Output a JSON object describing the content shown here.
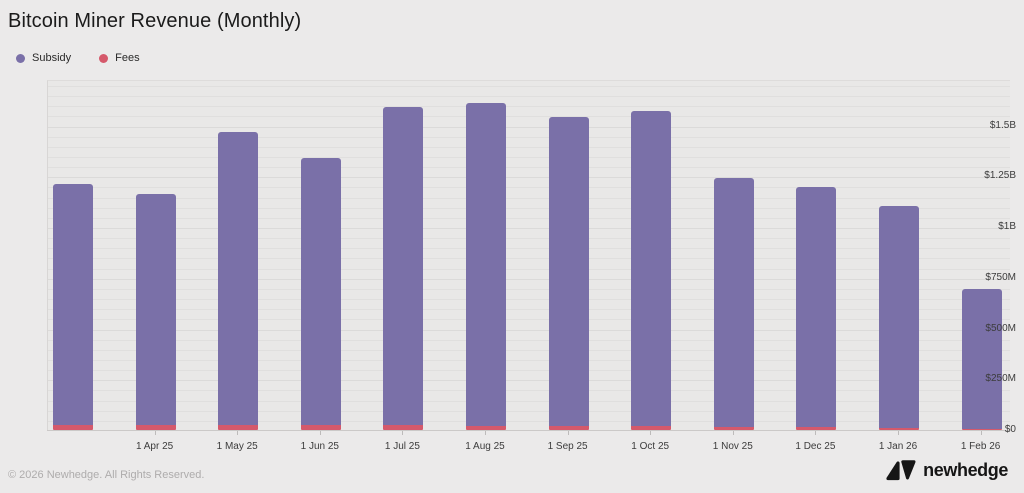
{
  "page": {
    "title": "Bitcoin Miner Revenue (Monthly)",
    "footer": "© 2026 Newhedge. All Rights Reserved.",
    "brand": "newhedge"
  },
  "legend": [
    {
      "label": "Subsidy",
      "color": "#7a70a8"
    },
    {
      "label": "Fees",
      "color": "#d5596b"
    }
  ],
  "chart_data": {
    "type": "bar",
    "stacked": true,
    "title": "Bitcoin Miner Revenue (Monthly)",
    "unit": "USD",
    "x_tick_labels": [
      "",
      "1 Apr 25",
      "1 May 25",
      "1 Jun 25",
      "1 Jul 25",
      "1 Aug 25",
      "1 Sep 25",
      "1 Oct 25",
      "1 Nov 25",
      "1 Dec 25",
      "1 Jan 26",
      "1 Feb 26"
    ],
    "series": [
      {
        "name": "Subsidy",
        "color": "#7a70a8",
        "values_billions_usd": [
          1.185,
          1.14,
          1.445,
          1.315,
          1.565,
          1.59,
          1.518,
          1.548,
          1.225,
          1.18,
          1.094,
          0.689
        ]
      },
      {
        "name": "Fees",
        "color": "#d5596b",
        "values_billions_usd": [
          0.025,
          0.025,
          0.025,
          0.025,
          0.025,
          0.02,
          0.022,
          0.022,
          0.015,
          0.015,
          0.009,
          0.006
        ]
      }
    ],
    "totals_billions_usd": [
      1.21,
      1.165,
      1.47,
      1.34,
      1.59,
      1.61,
      1.54,
      1.57,
      1.24,
      1.195,
      1.103,
      0.695
    ],
    "y_ticks": [
      {
        "label": "$0",
        "value": 0
      },
      {
        "label": "$250M",
        "value": 0.25
      },
      {
        "label": "$500M",
        "value": 0.5
      },
      {
        "label": "$750M",
        "value": 0.75
      },
      {
        "label": "$1B",
        "value": 1.0
      },
      {
        "label": "$1.25B",
        "value": 1.25
      },
      {
        "label": "$1.5B",
        "value": 1.5
      }
    ],
    "ylim": [
      0,
      1.724
    ],
    "grid": {
      "horizontal": true,
      "minor_step_billions": 0.05,
      "major_step_billions": 0.25
    },
    "legend_position": "top-left"
  }
}
